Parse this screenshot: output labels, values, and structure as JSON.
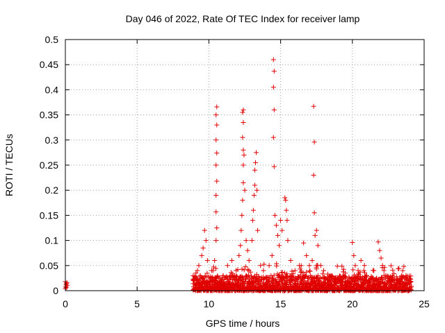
{
  "chart_data": {
    "type": "scatter",
    "title": "Day 046 of 2022, Rate Of TEC Index for receiver lamp",
    "xlabel": "GPS time / hours",
    "ylabel": "ROTI / TECUs",
    "xlim": [
      0,
      25
    ],
    "ylim": [
      0,
      0.5
    ],
    "x_ticks": [
      0,
      5,
      10,
      15,
      20,
      25
    ],
    "x_tick_labels": [
      "0",
      "5",
      "10",
      "15",
      "20",
      "25"
    ],
    "y_ticks": [
      0,
      0.05,
      0.1,
      0.15,
      0.2,
      0.25,
      0.3,
      0.35,
      0.4,
      0.45,
      0.5
    ],
    "y_tick_labels": [
      "0",
      "0.05",
      "0.1",
      "0.15",
      "0.2",
      "0.25",
      "0.3",
      "0.35",
      "0.4",
      "0.45",
      "0.5"
    ],
    "grid": true,
    "marker": "plus",
    "color": "#e00000",
    "series": [
      {
        "points": [
          [
            0.0,
            0.018
          ],
          [
            0.05,
            0.012
          ],
          [
            0.1,
            0.016
          ],
          [
            0.02,
            0.008
          ],
          [
            0.08,
            0.014
          ],
          [
            0.12,
            0.01
          ],
          [
            0.0,
            0.004
          ],
          [
            0.06,
            0.006
          ],
          [
            9.0,
            0.02
          ],
          [
            9.1,
            0.035
          ],
          [
            9.3,
            0.05
          ],
          [
            9.5,
            0.07
          ],
          [
            9.6,
            0.085
          ],
          [
            9.7,
            0.12
          ],
          [
            9.8,
            0.1
          ],
          [
            9.9,
            0.06
          ],
          [
            9.2,
            0.04
          ],
          [
            9.4,
            0.03
          ],
          [
            10.2,
            0.04
          ],
          [
            10.4,
            0.06
          ],
          [
            10.5,
            0.1
          ],
          [
            10.55,
            0.125
          ],
          [
            10.5,
            0.157
          ],
          [
            10.5,
            0.19
          ],
          [
            10.55,
            0.218
          ],
          [
            10.5,
            0.25
          ],
          [
            10.55,
            0.274
          ],
          [
            10.5,
            0.3
          ],
          [
            10.55,
            0.33
          ],
          [
            10.5,
            0.35
          ],
          [
            10.55,
            0.366
          ],
          [
            11.0,
            0.03
          ],
          [
            11.3,
            0.05
          ],
          [
            11.6,
            0.06
          ],
          [
            11.9,
            0.04
          ],
          [
            12.1,
            0.07
          ],
          [
            12.2,
            0.09
          ],
          [
            12.25,
            0.12
          ],
          [
            12.3,
            0.15
          ],
          [
            12.35,
            0.18
          ],
          [
            12.4,
            0.215
          ],
          [
            12.4,
            0.25
          ],
          [
            12.45,
            0.27
          ],
          [
            12.4,
            0.28
          ],
          [
            12.35,
            0.305
          ],
          [
            12.4,
            0.335
          ],
          [
            12.35,
            0.355
          ],
          [
            12.4,
            0.36
          ],
          [
            12.5,
            0.2
          ],
          [
            12.6,
            0.1
          ],
          [
            12.7,
            0.08
          ],
          [
            12.8,
            0.06
          ],
          [
            13.0,
            0.1
          ],
          [
            13.05,
            0.14
          ],
          [
            13.1,
            0.16
          ],
          [
            13.15,
            0.19
          ],
          [
            13.2,
            0.21
          ],
          [
            13.2,
            0.24
          ],
          [
            13.25,
            0.255
          ],
          [
            13.3,
            0.275
          ],
          [
            13.35,
            0.2
          ],
          [
            13.4,
            0.12
          ],
          [
            13.6,
            0.05
          ],
          [
            13.8,
            0.04
          ],
          [
            14.2,
            0.05
          ],
          [
            14.4,
            0.07
          ],
          [
            14.5,
            0.46
          ],
          [
            14.55,
            0.437
          ],
          [
            14.5,
            0.405
          ],
          [
            14.55,
            0.36
          ],
          [
            14.5,
            0.305
          ],
          [
            14.55,
            0.247
          ],
          [
            14.6,
            0.15
          ],
          [
            14.7,
            0.13
          ],
          [
            14.8,
            0.11
          ],
          [
            14.9,
            0.09
          ],
          [
            15.0,
            0.14
          ],
          [
            15.1,
            0.12
          ],
          [
            15.3,
            0.185
          ],
          [
            15.35,
            0.18
          ],
          [
            15.4,
            0.16
          ],
          [
            15.45,
            0.14
          ],
          [
            15.5,
            0.1
          ],
          [
            15.7,
            0.06
          ],
          [
            16.0,
            0.04
          ],
          [
            16.3,
            0.05
          ],
          [
            16.6,
            0.095
          ],
          [
            16.8,
            0.07
          ],
          [
            17.0,
            0.05
          ],
          [
            17.2,
            0.06
          ],
          [
            17.3,
            0.367
          ],
          [
            17.35,
            0.296
          ],
          [
            17.3,
            0.23
          ],
          [
            17.35,
            0.155
          ],
          [
            17.4,
            0.11
          ],
          [
            17.5,
            0.12
          ],
          [
            17.6,
            0.09
          ],
          [
            17.8,
            0.05
          ],
          [
            18.0,
            0.04
          ],
          [
            18.5,
            0.03
          ],
          [
            19.0,
            0.025
          ],
          [
            19.5,
            0.035
          ],
          [
            20.0,
            0.096
          ],
          [
            20.1,
            0.07
          ],
          [
            20.2,
            0.05
          ],
          [
            20.4,
            0.04
          ],
          [
            20.6,
            0.06
          ],
          [
            20.8,
            0.04
          ],
          [
            21.0,
            0.03
          ],
          [
            21.5,
            0.04
          ],
          [
            21.8,
            0.097
          ],
          [
            21.9,
            0.08
          ],
          [
            22.0,
            0.065
          ],
          [
            22.1,
            0.05
          ],
          [
            22.2,
            0.04
          ],
          [
            22.5,
            0.02
          ],
          [
            23.0,
            0.012
          ],
          [
            23.5,
            0.01
          ],
          [
            24.0,
            0.012
          ]
        ]
      }
    ],
    "dense_band": {
      "x_start": 8.9,
      "x_end": 24.1,
      "y_floor": 0.0,
      "y_typical_max": 0.03
    }
  }
}
